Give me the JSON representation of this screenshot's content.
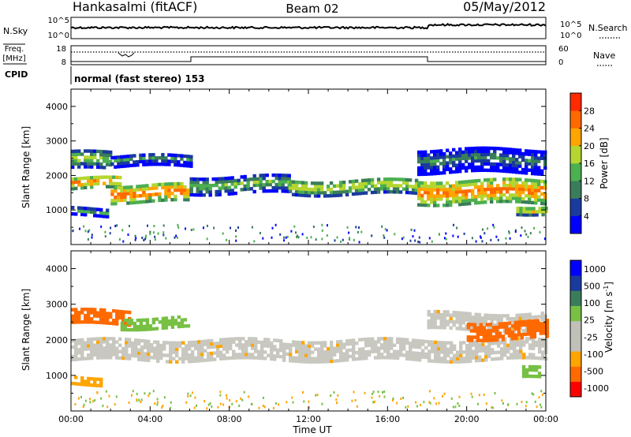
{
  "header": {
    "station": "Hankasalmi (fitACF)",
    "beam": "Beam 02",
    "date": "05/May/2012"
  },
  "panels": {
    "nsky": {
      "label": "N.Sky",
      "left_ticks": [
        "10^5",
        "10^0"
      ],
      "right_ticks": [
        "10^5",
        "10^0"
      ],
      "right_label": "N.Search"
    },
    "freq": {
      "label_line1": "Freq.",
      "label_line2": "[MHz]",
      "left_ticks": [
        "18",
        "8"
      ],
      "right_ticks": [
        "60",
        "0"
      ],
      "right_label": "Nave"
    },
    "cpid": {
      "label": "CPID",
      "text": "normal (fast stereo) 153"
    }
  },
  "colors": {
    "power": [
      "#0000ff",
      "#1a3a9e",
      "#3a7d5a",
      "#4caf50",
      "#b5d631",
      "#ffa500",
      "#ff6a00",
      "#ff2a00"
    ],
    "velocity": [
      "#0000ff",
      "#1a3a9e",
      "#3a7d5a",
      "#77c044",
      "#c0c0b8",
      "#ffa500",
      "#ff6a00",
      "#ff0000"
    ],
    "ground_scatter": "#c8c8c0"
  },
  "chart_data": [
    {
      "type": "heatmap",
      "name": "power",
      "ylabel": "Slant Range [km]",
      "xlabel": "Time UT",
      "x_ticks": [
        "00:00",
        "04:00",
        "08:00",
        "12:00",
        "16:00",
        "20:00",
        "00:00"
      ],
      "y_ticks": [
        "1000",
        "2000",
        "3000",
        "4000"
      ],
      "ylim": [
        0,
        4500
      ],
      "xlim_hours": [
        0,
        24
      ],
      "colorbar": {
        "label": "Power [dB]",
        "tick_labels": [
          "4",
          "8",
          "12",
          "16",
          "20",
          "24",
          "28"
        ],
        "range": [
          0,
          32
        ]
      },
      "bands": [
        {
          "start_h": 0.0,
          "end_h": 2.5,
          "center_km": 1750,
          "width_km": 350,
          "level": 26
        },
        {
          "start_h": 0.0,
          "end_h": 2.0,
          "center_km": 2400,
          "width_km": 500,
          "level": 18
        },
        {
          "start_h": 0.0,
          "end_h": 1.8,
          "center_km": 900,
          "width_km": 220,
          "level": 14
        },
        {
          "start_h": 2.0,
          "end_h": 6.0,
          "center_km": 1450,
          "width_km": 500,
          "level": 27
        },
        {
          "start_h": 2.0,
          "end_h": 6.0,
          "center_km": 2400,
          "width_km": 350,
          "level": 12
        },
        {
          "start_h": 6.0,
          "end_h": 11.0,
          "center_km": 1700,
          "width_km": 500,
          "level": 16
        },
        {
          "start_h": 11.0,
          "end_h": 17.5,
          "center_km": 1650,
          "width_km": 450,
          "level": 20
        },
        {
          "start_h": 17.5,
          "end_h": 24.0,
          "center_km": 1500,
          "width_km": 700,
          "level": 26
        },
        {
          "start_h": 17.5,
          "end_h": 24.0,
          "center_km": 2400,
          "width_km": 700,
          "level": 11
        },
        {
          "start_h": 22.5,
          "end_h": 24.0,
          "center_km": 1000,
          "width_km": 250,
          "level": 22
        }
      ]
    },
    {
      "type": "heatmap",
      "name": "velocity",
      "ylabel": "Slant Range [km]",
      "xlabel": "Time UT",
      "x_ticks": [
        "00:00",
        "04:00",
        "08:00",
        "12:00",
        "16:00",
        "20:00",
        "00:00"
      ],
      "y_ticks": [
        "1000",
        "2000",
        "3000",
        "4000"
      ],
      "ylim": [
        0,
        4500
      ],
      "xlim_hours": [
        0,
        24
      ],
      "colorbar": {
        "label": "Velocity [m s^-1]",
        "tick_labels": [
          "1000",
          "500",
          "100",
          "25",
          "-25",
          "-100",
          "-500",
          "-1000"
        ]
      },
      "bands": [
        {
          "start_h": 0.0,
          "end_h": 24.0,
          "center_km": 1700,
          "width_km": 600,
          "level": "ground"
        },
        {
          "start_h": 0.0,
          "end_h": 3.0,
          "center_km": 2600,
          "width_km": 400,
          "level": "-250"
        },
        {
          "start_h": 2.5,
          "end_h": 6.0,
          "center_km": 2450,
          "width_km": 300,
          "level": "100"
        },
        {
          "start_h": 0.0,
          "end_h": 1.5,
          "center_km": 850,
          "width_km": 250,
          "level": "-100"
        },
        {
          "start_h": 18.0,
          "end_h": 24.0,
          "center_km": 2500,
          "width_km": 500,
          "level": "ground"
        },
        {
          "start_h": 20.0,
          "end_h": 24.0,
          "center_km": 2250,
          "width_km": 500,
          "level": "-300"
        },
        {
          "start_h": 22.8,
          "end_h": 23.6,
          "center_km": 1050,
          "width_km": 350,
          "level": "100"
        }
      ]
    }
  ],
  "time_axis_title": "Time UT"
}
